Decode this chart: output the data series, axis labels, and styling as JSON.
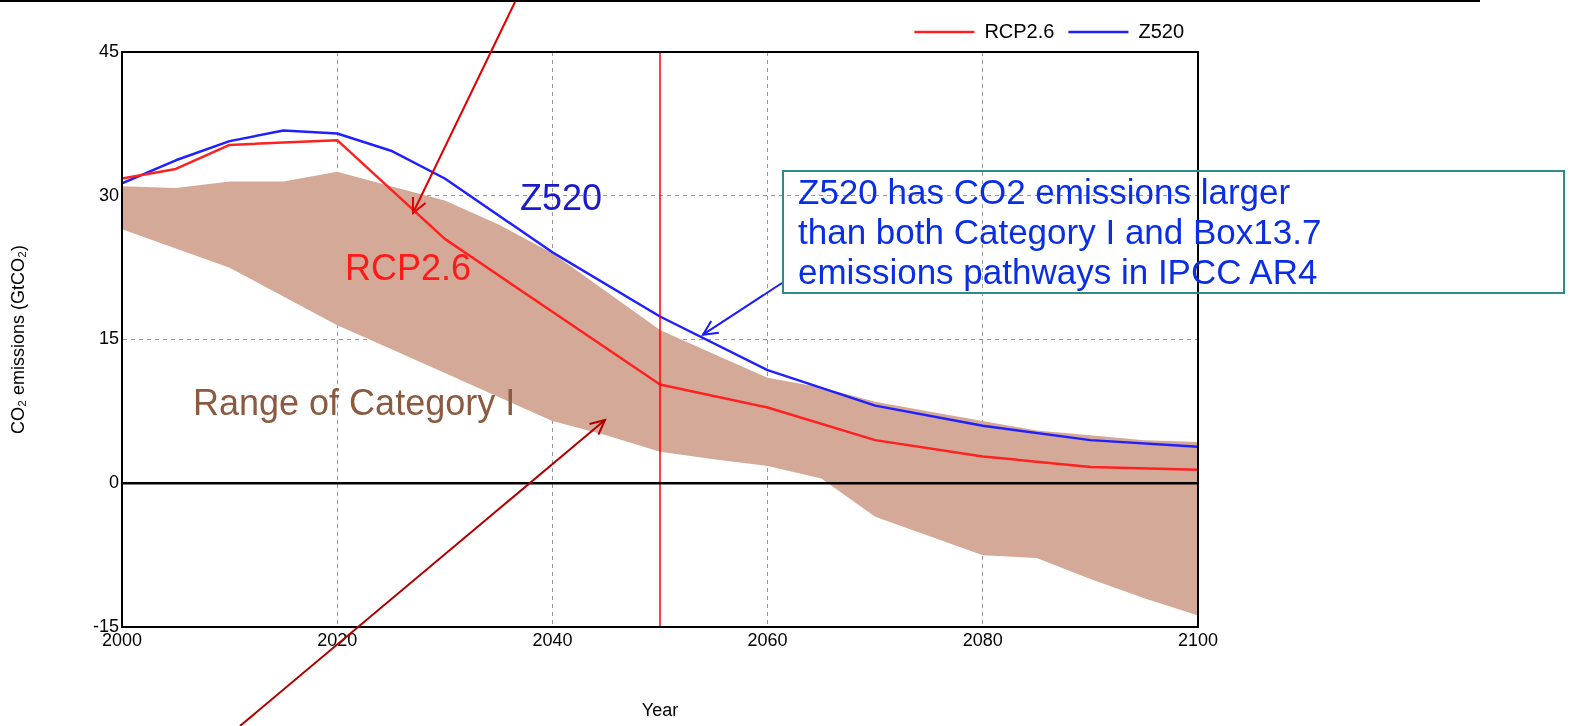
{
  "chart_data": {
    "type": "line",
    "xlabel": "Year",
    "ylabel": "CO₂ emissions (GtCO₂)",
    "xlim": [
      2000,
      2100
    ],
    "xticks": [
      2000,
      2020,
      2040,
      2060,
      2080,
      2100
    ],
    "ylim": [
      -15,
      45
    ],
    "yticks": [
      -15,
      0,
      15,
      30,
      45
    ],
    "grid": true,
    "legend": "top right",
    "marker": "none",
    "line_style": "solid",
    "series": [
      {
        "type": "area",
        "color": "#d4a998",
        "x": [
          2000,
          2005,
          2010,
          2015,
          2020,
          2025,
          2030,
          2035,
          2040,
          2045,
          2050,
          2055,
          2060,
          2065,
          2070,
          2075,
          2080,
          2085,
          2090,
          2095,
          2100
        ],
        "values": [
          null,
          null,
          null,
          null,
          null,
          null,
          null,
          null,
          null,
          null,
          null,
          null,
          null,
          null,
          null,
          null,
          null,
          null,
          null,
          null,
          null
        ],
        "lower": [
          26.5,
          24.5,
          22.5,
          19.5,
          16.5,
          14,
          11.5,
          9,
          6.5,
          5,
          3.3,
          2.5,
          1.8,
          0.5,
          -3.5,
          -5.5,
          -7.5,
          -7.8,
          -10,
          -12,
          -13.8
        ],
        "upper": [
          31,
          30.8,
          31.5,
          31.5,
          32.5,
          31,
          29.5,
          27,
          24,
          20,
          16,
          13.5,
          11,
          10,
          8.5,
          7.5,
          6.5,
          5.5,
          5,
          4.5,
          4.3
        ]
      },
      {
        "name": "RCP2.6",
        "color": "#ff2020",
        "x": [
          2000,
          2005,
          2010,
          2020,
          2030,
          2040,
          2050,
          2060,
          2070,
          2080,
          2090,
          2100
        ],
        "values": [
          31.8,
          32.8,
          35.3,
          35.8,
          25.5,
          17.9,
          10.3,
          7.9,
          4.5,
          2.8,
          1.7,
          1.4
        ]
      },
      {
        "name": "Z520",
        "color": "#2020ff",
        "x": [
          2000,
          2005,
          2010,
          2015,
          2020,
          2025,
          2030,
          2040,
          2050,
          2060,
          2070,
          2080,
          2090,
          2100
        ],
        "values": [
          31.3,
          33.7,
          35.7,
          36.8,
          36.5,
          34.7,
          31.8,
          24.1,
          17.4,
          11.8,
          8.1,
          6.0,
          4.5,
          3.8
        ]
      }
    ],
    "ref_lines": [
      {
        "axis": "x",
        "value": 2050,
        "color": "#ff0000"
      },
      {
        "axis": "y",
        "value": 0,
        "color": "#000000"
      }
    ],
    "annotations": [
      "Z520",
      "RCP2.6",
      "Range of Category I",
      {
        "text": "Z520 has CO2 emissions larger\nthan both Category I and Box13.7\nemissions pathways in IPCC AR4",
        "x": 2054,
        "y": 15.5
      }
    ]
  }
}
